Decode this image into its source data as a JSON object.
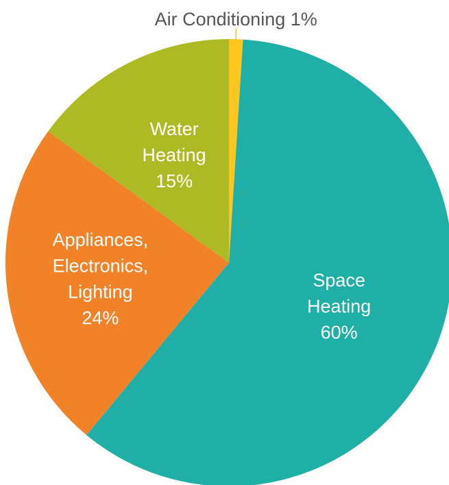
{
  "chart_data": {
    "type": "pie",
    "title": "",
    "start_angle_deg": 0,
    "slices": [
      {
        "label_lines": [
          "Air Conditioning 1%"
        ],
        "value": 1,
        "color": "#FFC61E",
        "label_position": "outside-top"
      },
      {
        "label_lines": [
          "Space",
          "Heating",
          "60%"
        ],
        "value": 60,
        "color": "#1FAFA6",
        "label_position": "inside"
      },
      {
        "label_lines": [
          "Appliances,",
          "Electronics,",
          "Lighting",
          "24%"
        ],
        "value": 24,
        "color": "#F28228",
        "label_position": "inside"
      },
      {
        "label_lines": [
          "Water",
          "Heating",
          "15%"
        ],
        "value": 15,
        "color": "#AEBA24",
        "label_position": "inside"
      }
    ]
  }
}
